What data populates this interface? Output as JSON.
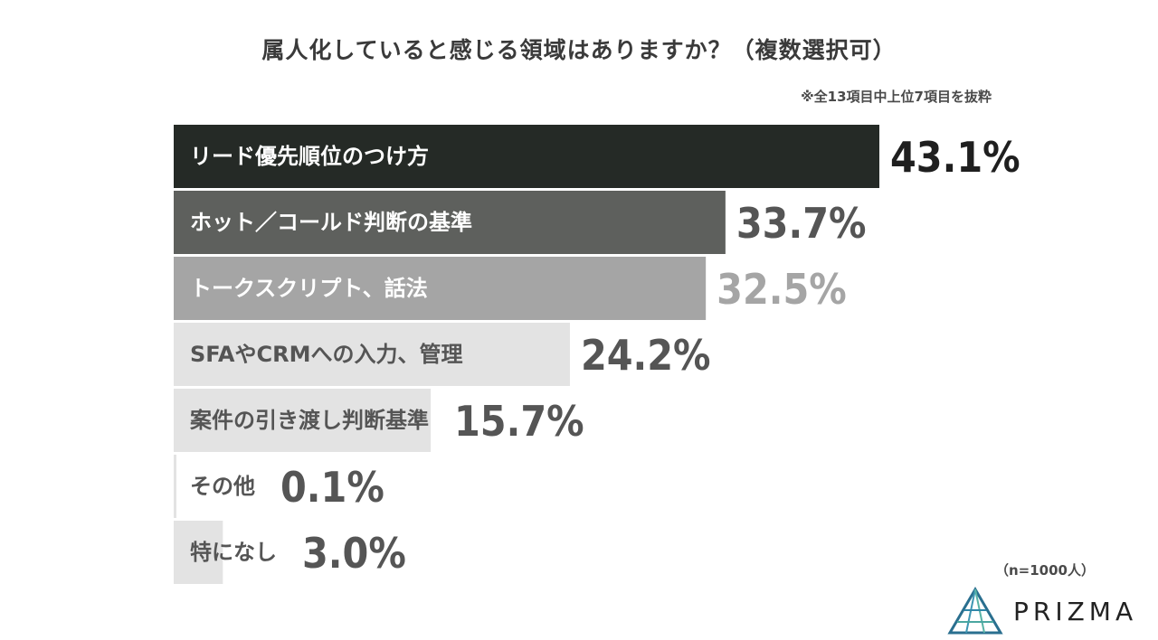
{
  "header": {
    "title": "属人化していると感じる領域はありますか？（複数選択可）",
    "note": "※全13項目中上位7項目を抜粋"
  },
  "footer": {
    "sample_size": "（n=1000人）",
    "brand": "PRIZMA"
  },
  "chart_data": {
    "type": "bar",
    "orientation": "horizontal",
    "categories": [
      "リード優先順位のつけ方",
      "ホット／コールド判断の基準",
      "トークスクリプト、話法",
      "SFAやCRMへの入力、管理",
      "案件の引き渡し判断基準",
      "その他",
      "特になし"
    ],
    "values": [
      43.1,
      33.7,
      32.5,
      24.2,
      15.7,
      0.1,
      3.0
    ],
    "value_labels": [
      "43.1%",
      "33.7%",
      "32.5%",
      "24.2%",
      "15.7%",
      "0.1%",
      "3.0%"
    ],
    "bar_colors": [
      "#252a26",
      "#5e605d",
      "#a5a5a5",
      "#e3e3e3",
      "#e3e3e3",
      "#e3e3e3",
      "#e3e3e3"
    ],
    "label_colors": [
      "#ffffff",
      "#ffffff",
      "#ffffff",
      "#555555",
      "#555555",
      "#555555",
      "#555555"
    ],
    "value_colors": [
      "#1f1f1f",
      "#555555",
      "#a5a5a5",
      "#555555",
      "#555555",
      "#555555",
      "#555555"
    ],
    "xlim": [
      0,
      100
    ],
    "grid": false,
    "legend": "none"
  }
}
